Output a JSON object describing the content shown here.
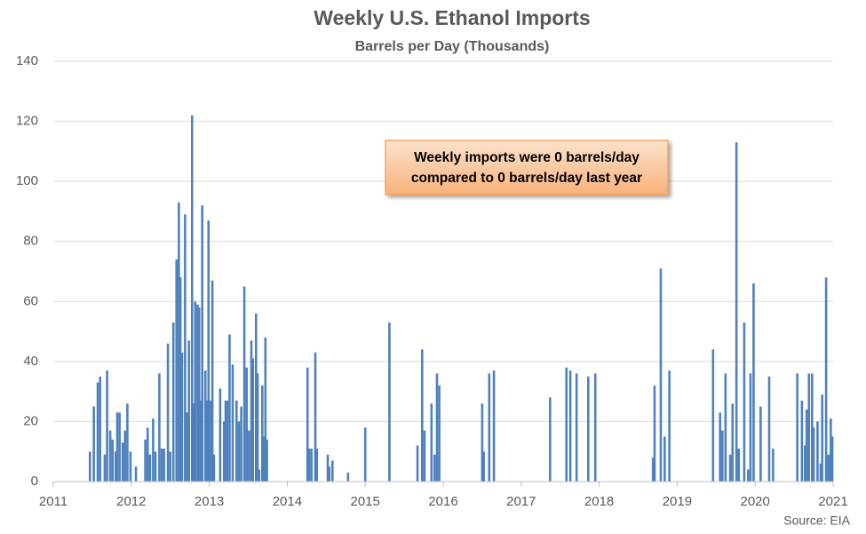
{
  "chart_data": {
    "type": "bar",
    "title": "Weekly U.S. Ethanol Imports",
    "subtitle": "Barrels per Day (Thousands)",
    "annotation": [
      "Weekly imports were 0 barrels/day",
      "compared to 0 barrels/day last year"
    ],
    "source": "Source: EIA",
    "color": "#4f81bd",
    "grid": true,
    "xlim": [
      2011,
      2021
    ],
    "xticks": [
      2011,
      2012,
      2013,
      2014,
      2015,
      2016,
      2017,
      2018,
      2019,
      2020,
      2021
    ],
    "ylim": [
      0,
      140
    ],
    "yticks": [
      0,
      20,
      40,
      60,
      80,
      100,
      120,
      140
    ],
    "x": [
      2011.47,
      2011.52,
      2011.57,
      2011.6,
      2011.66,
      2011.69,
      2011.73,
      2011.76,
      2011.8,
      2011.82,
      2011.85,
      2011.89,
      2011.92,
      2011.95,
      2011.99,
      2012.06,
      2012.18,
      2012.21,
      2012.24,
      2012.28,
      2012.31,
      2012.36,
      2012.39,
      2012.42,
      2012.47,
      2012.5,
      2012.54,
      2012.58,
      2012.61,
      2012.63,
      2012.65,
      2012.69,
      2012.71,
      2012.74,
      2012.78,
      2012.8,
      2012.82,
      2012.85,
      2012.87,
      2012.89,
      2012.91,
      2012.95,
      2012.97,
      2012.99,
      2013.02,
      2013.04,
      2013.06,
      2013.14,
      2013.19,
      2013.21,
      2013.23,
      2013.26,
      2013.3,
      2013.35,
      2013.38,
      2013.41,
      2013.45,
      2013.48,
      2013.51,
      2013.54,
      2013.56,
      2013.6,
      2013.62,
      2013.64,
      2013.68,
      2013.7,
      2013.72,
      2013.74,
      2014.26,
      2014.28,
      2014.31,
      2014.36,
      2014.38,
      2014.52,
      2014.54,
      2014.58,
      2014.78,
      2015.0,
      2015.31,
      2015.67,
      2015.73,
      2015.76,
      2015.85,
      2015.89,
      2015.92,
      2015.95,
      2016.5,
      2016.52,
      2016.59,
      2016.65,
      2017.37,
      2017.58,
      2017.63,
      2017.71,
      2017.86,
      2017.95,
      2018.69,
      2018.71,
      2018.79,
      2018.84,
      2018.9,
      2019.46,
      2019.55,
      2019.58,
      2019.62,
      2019.68,
      2019.71,
      2019.76,
      2019.79,
      2019.86,
      2019.91,
      2019.94,
      2019.98,
      2020.07,
      2020.18,
      2020.23,
      2020.54,
      2020.6,
      2020.64,
      2020.66,
      2020.69,
      2020.73,
      2020.75,
      2020.8,
      2020.84,
      2020.86,
      2020.91,
      2020.94,
      2020.97,
      2020.99
    ],
    "values": [
      10,
      25,
      33,
      35,
      9,
      37,
      17,
      14,
      10,
      23,
      23,
      13,
      17,
      26,
      10,
      5,
      14,
      18,
      9,
      21,
      10,
      36,
      11,
      11,
      46,
      10,
      53,
      74,
      93,
      68,
      43,
      89,
      23,
      47,
      122,
      26,
      60,
      59,
      58,
      27,
      92,
      37,
      27,
      87,
      27,
      67,
      9,
      31,
      20,
      27,
      27,
      49,
      39,
      27,
      20,
      25,
      65,
      38,
      17,
      47,
      41,
      56,
      36,
      4,
      32,
      15,
      48,
      14,
      38,
      11,
      11,
      43,
      11,
      9,
      5,
      7,
      3,
      18,
      53,
      12,
      44,
      17,
      26,
      9,
      36,
      32,
      26,
      10,
      36,
      37,
      28,
      38,
      37,
      36,
      35,
      36,
      8,
      32,
      71,
      15,
      37,
      44,
      23,
      17,
      36,
      9,
      26,
      113,
      11,
      53,
      4,
      36,
      66,
      25,
      35,
      11,
      36,
      27,
      12,
      24,
      36,
      36,
      18,
      20,
      6,
      29,
      68,
      9,
      21,
      15
    ]
  }
}
